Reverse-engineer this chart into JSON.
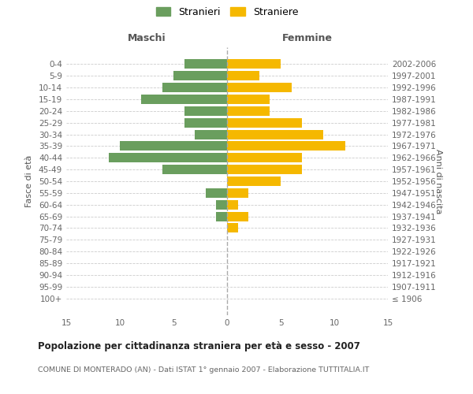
{
  "age_groups": [
    "100+",
    "95-99",
    "90-94",
    "85-89",
    "80-84",
    "75-79",
    "70-74",
    "65-69",
    "60-64",
    "55-59",
    "50-54",
    "45-49",
    "40-44",
    "35-39",
    "30-34",
    "25-29",
    "20-24",
    "15-19",
    "10-14",
    "5-9",
    "0-4"
  ],
  "birth_years": [
    "≤ 1906",
    "1907-1911",
    "1912-1916",
    "1917-1921",
    "1922-1926",
    "1927-1931",
    "1932-1936",
    "1937-1941",
    "1942-1946",
    "1947-1951",
    "1952-1956",
    "1957-1961",
    "1962-1966",
    "1967-1971",
    "1972-1976",
    "1977-1981",
    "1982-1986",
    "1987-1991",
    "1992-1996",
    "1997-2001",
    "2002-2006"
  ],
  "maschi": [
    0,
    0,
    0,
    0,
    0,
    0,
    0,
    1,
    1,
    2,
    0,
    6,
    11,
    10,
    3,
    4,
    4,
    8,
    6,
    5,
    4
  ],
  "femmine": [
    0,
    0,
    0,
    0,
    0,
    0,
    1,
    2,
    1,
    2,
    5,
    7,
    7,
    11,
    9,
    7,
    4,
    4,
    6,
    3,
    5
  ],
  "color_maschi": "#6a9e5e",
  "color_femmine": "#f5b800",
  "title": "Popolazione per cittadinanza straniera per età e sesso - 2007",
  "subtitle": "COMUNE DI MONTERADO (AN) - Dati ISTAT 1° gennaio 2007 - Elaborazione TUTTITALIA.IT",
  "legend_maschi": "Stranieri",
  "legend_femmine": "Straniere",
  "xlabel_left": "Maschi",
  "xlabel_right": "Femmine",
  "ylabel_left": "Fasce di età",
  "ylabel_right": "Anni di nascita",
  "xlim": 15,
  "background_color": "#ffffff",
  "grid_color": "#cccccc"
}
